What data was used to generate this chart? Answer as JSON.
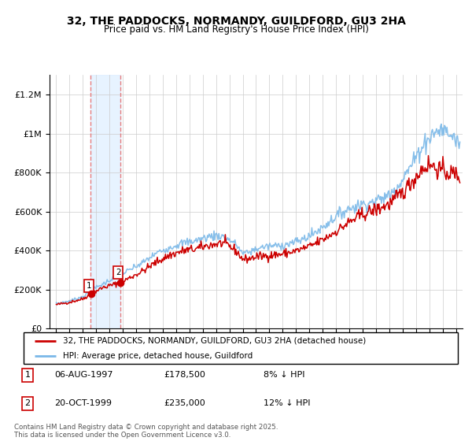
{
  "title": "32, THE PADDOCKS, NORMANDY, GUILDFORD, GU3 2HA",
  "subtitle": "Price paid vs. HM Land Registry's House Price Index (HPI)",
  "legend_line1": "32, THE PADDOCKS, NORMANDY, GUILDFORD, GU3 2HA (detached house)",
  "legend_line2": "HPI: Average price, detached house, Guildford",
  "transaction1_date": "06-AUG-1997",
  "transaction1_price": "£178,500",
  "transaction1_note": "8% ↓ HPI",
  "transaction1_year": 1997.6,
  "transaction1_value": 178500,
  "transaction2_date": "20-OCT-1999",
  "transaction2_price": "£235,000",
  "transaction2_note": "12% ↓ HPI",
  "transaction2_year": 1999.8,
  "transaction2_value": 235000,
  "hpi_color": "#7ab8e8",
  "price_color": "#cc0000",
  "vline_color": "#e87070",
  "span_color": "#ddeeff",
  "footer": "Contains HM Land Registry data © Crown copyright and database right 2025.\nThis data is licensed under the Open Government Licence v3.0.",
  "ylim_max": 1300000,
  "xlim_start": 1994.5,
  "xlim_end": 2025.5
}
